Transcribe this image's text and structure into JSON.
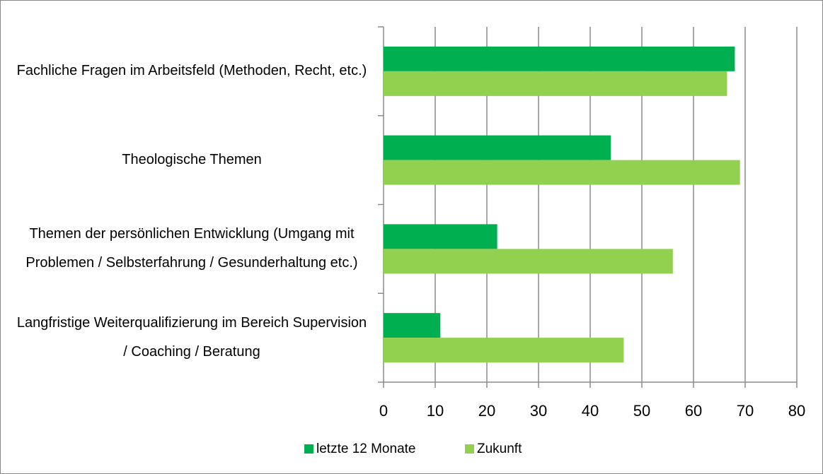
{
  "chart_data": {
    "type": "hbar",
    "categories": [
      "Fachliche Fragen im Arbeitsfeld (Methoden, Recht, etc.)",
      "Theologische Themen",
      "Themen der persönlichen Entwicklung (Umgang mit Problemen / Selbsterfahrung / Gesunderhaltung etc.)",
      "Langfristige Weiterqualifizierung im Bereich Supervision / Coaching / Beratung"
    ],
    "series": [
      {
        "name": "letzte 12 Monate",
        "color": "#00b050",
        "values": [
          68,
          44,
          22,
          11
        ]
      },
      {
        "name": "Zukunft",
        "color": "#92d050",
        "values": [
          66.5,
          69,
          56,
          46.5
        ]
      }
    ],
    "xlim": [
      0,
      80
    ],
    "xticks": [
      0,
      10,
      20,
      30,
      40,
      50,
      60,
      70,
      80
    ],
    "grid": true,
    "legend": "bottom"
  }
}
